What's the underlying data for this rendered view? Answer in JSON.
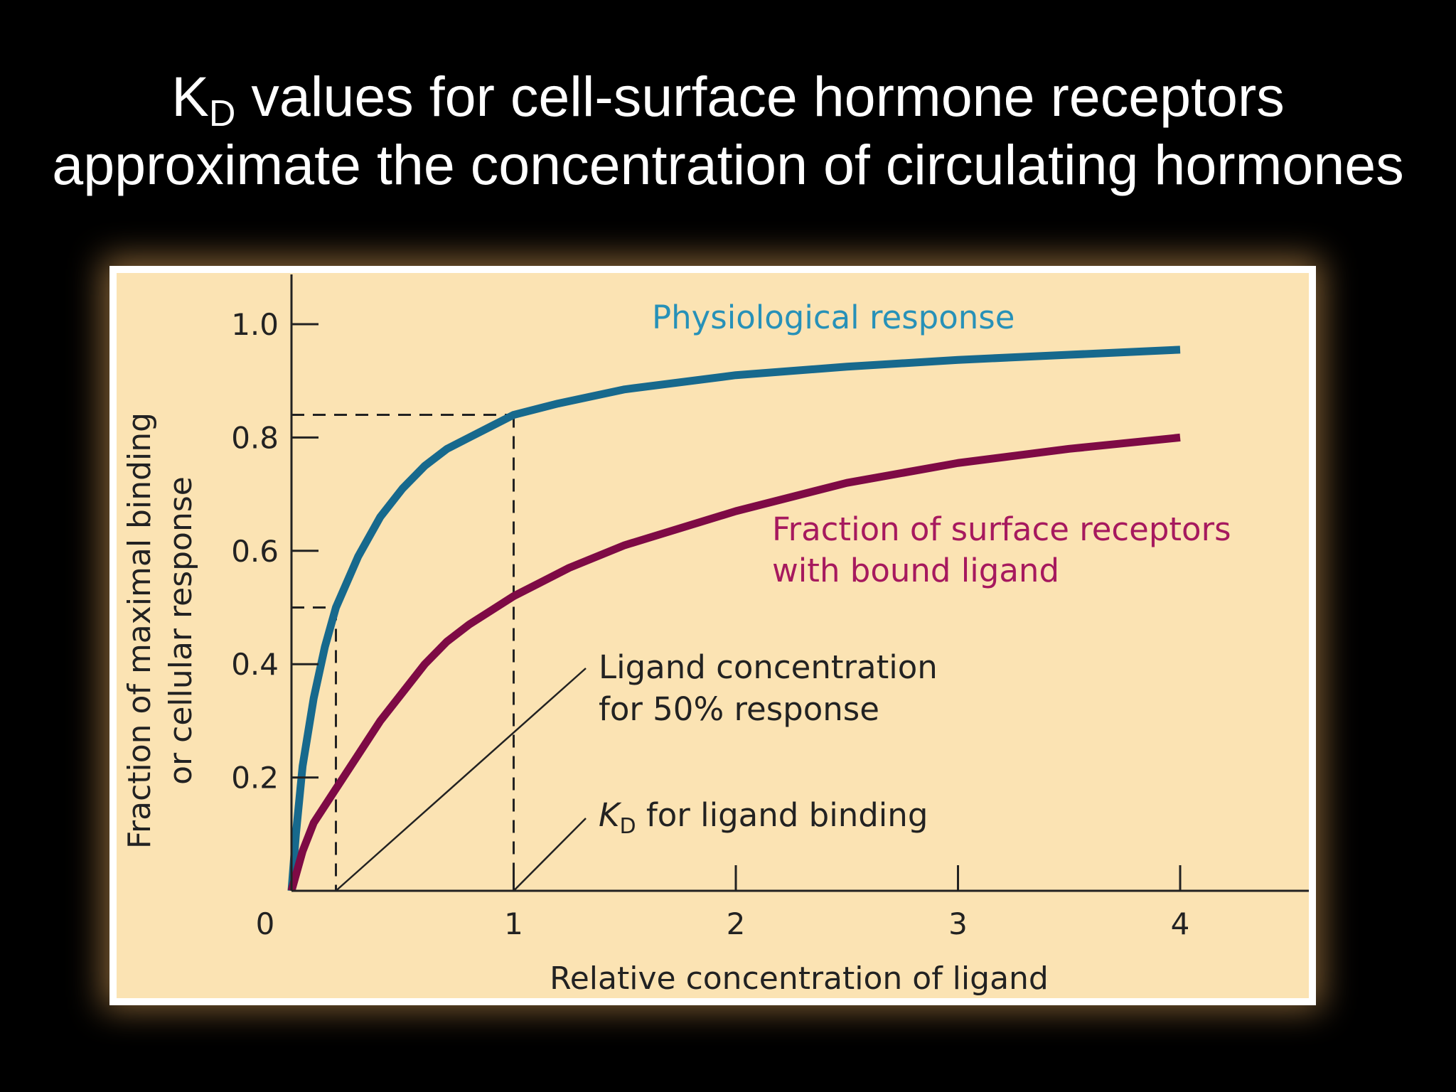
{
  "slide": {
    "title_line1_pre": "K",
    "title_line1_sub": "D",
    "title_line1_post": " values for cell-surface hormone receptors",
    "title_line2": "approximate the concentration of circulating hormones"
  },
  "chart_data": {
    "type": "line",
    "xlabel": "Relative concentration of ligand",
    "ylabel_line1": "Fraction of maximal binding",
    "ylabel_line2": "or cellular response",
    "xlim": [
      0,
      4.6
    ],
    "ylim": [
      0,
      1.1
    ],
    "x_ticks": [
      0,
      1,
      2,
      3,
      4
    ],
    "x_tick_labels": [
      "0",
      "1",
      "2",
      "3",
      "4"
    ],
    "y_ticks": [
      0.2,
      0.4,
      0.6,
      0.8,
      1.0
    ],
    "y_tick_labels": [
      "0.2",
      "0.4",
      "0.6",
      "0.8",
      "1.0"
    ],
    "grid": false,
    "series": [
      {
        "name": "Physiological response",
        "color": "#17698d",
        "x": [
          0,
          0.02,
          0.05,
          0.1,
          0.15,
          0.2,
          0.3,
          0.4,
          0.5,
          0.6,
          0.7,
          0.8,
          0.9,
          1.0,
          1.2,
          1.5,
          2.0,
          2.5,
          3.0,
          3.5,
          4.0
        ],
        "y": [
          0,
          0.1,
          0.22,
          0.34,
          0.43,
          0.5,
          0.59,
          0.66,
          0.71,
          0.75,
          0.78,
          0.8,
          0.82,
          0.84,
          0.86,
          0.885,
          0.91,
          0.925,
          0.937,
          0.946,
          0.955
        ]
      },
      {
        "name": "Fraction of surface receptors with bound ligand",
        "name_line1": "Fraction of surface receptors",
        "name_line2": "with bound ligand",
        "color": "#7e0a45",
        "x": [
          0,
          0.05,
          0.1,
          0.2,
          0.3,
          0.4,
          0.5,
          0.6,
          0.7,
          0.8,
          0.9,
          1.0,
          1.25,
          1.5,
          2.0,
          2.5,
          3.0,
          3.5,
          4.0
        ],
        "y": [
          0,
          0.07,
          0.12,
          0.18,
          0.24,
          0.3,
          0.35,
          0.4,
          0.44,
          0.47,
          0.495,
          0.52,
          0.57,
          0.61,
          0.67,
          0.72,
          0.755,
          0.78,
          0.8
        ]
      }
    ],
    "reference_lines": {
      "response_50_x": 0.2,
      "response_50_y": 0.5,
      "kd_x": 1.0,
      "kd_response_y": 0.84
    },
    "annotations": {
      "ec50_line1": "Ligand concentration",
      "ec50_line2": "for 50% response",
      "kd_pre": "K",
      "kd_sub": "D",
      "kd_post": " for ligand binding"
    }
  }
}
